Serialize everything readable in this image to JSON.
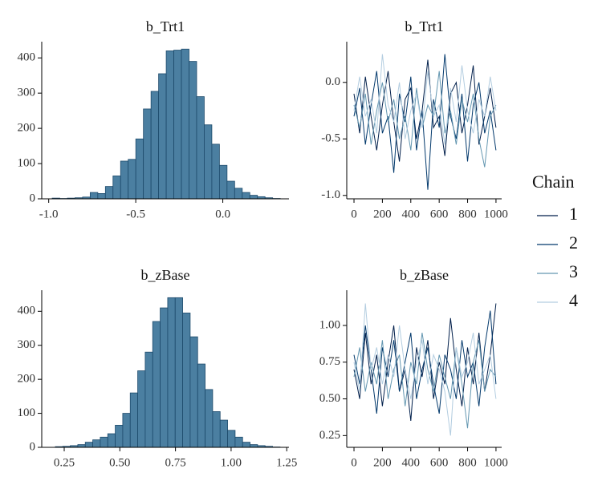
{
  "chart_data": [
    {
      "type": "histogram",
      "title": "b_Trt1",
      "color": "#4b7fa1",
      "edge_color": "#1d4a6b",
      "bins": [
        -0.98,
        -0.9363,
        -0.8927,
        -0.849,
        -0.8053,
        -0.7617,
        -0.718,
        -0.6743,
        -0.6307,
        -0.587,
        -0.5433,
        -0.4997,
        -0.456,
        -0.4123,
        -0.3687,
        -0.325,
        -0.2813,
        -0.2377,
        -0.194,
        -0.1503,
        -0.1067,
        -0.063,
        -0.0193,
        0.0243,
        0.068,
        0.1117,
        0.1553,
        0.199,
        0.2427,
        0.2863,
        0.33
      ],
      "values": [
        2,
        1,
        2,
        3,
        5,
        18,
        15,
        35,
        65,
        107,
        112,
        170,
        255,
        305,
        355,
        420,
        422,
        425,
        390,
        290,
        210,
        155,
        95,
        50,
        30,
        18,
        10,
        6,
        3,
        1
      ],
      "xlim": [
        -1.04,
        0.38
      ],
      "xticks": [
        {
          "value": -1,
          "label": "-1.0"
        },
        {
          "value": -0.5,
          "label": "-0.5"
        },
        {
          "value": 0,
          "label": "0.0"
        }
      ],
      "ylim": [
        0,
        446
      ],
      "yticks": [
        0,
        100,
        200,
        300,
        400
      ]
    },
    {
      "type": "line",
      "title": "b_Trt1",
      "x": [
        0,
        40,
        80,
        120,
        160,
        200,
        240,
        280,
        320,
        360,
        400,
        440,
        480,
        520,
        560,
        600,
        640,
        680,
        720,
        760,
        800,
        840,
        880,
        920,
        960,
        1000
      ],
      "series": [
        {
          "name": "1",
          "color": "#011f4b",
          "values": [
            -0.1,
            -0.45,
            0.05,
            -0.3,
            -0.6,
            -0.2,
            0.1,
            -0.35,
            -0.7,
            -0.15,
            -0.05,
            -0.5,
            -0.25,
            0.2,
            -0.4,
            -0.3,
            -0.65,
            -0.1,
            0.0,
            -0.45,
            -0.2,
            0.15,
            -0.55,
            -0.3,
            -0.05,
            -0.4
          ]
        },
        {
          "name": "2",
          "color": "#03396c",
          "values": [
            -0.3,
            -0.05,
            -0.55,
            -0.2,
            0.1,
            -0.45,
            -0.3,
            -0.8,
            -0.1,
            -0.35,
            0.05,
            -0.6,
            -0.25,
            -0.95,
            -0.15,
            -0.4,
            0.25,
            -0.3,
            -0.5,
            -0.1,
            -0.7,
            -0.2,
            0.0,
            -0.45,
            -0.25,
            -0.6
          ]
        },
        {
          "name": "3",
          "color": "#6497b1",
          "values": [
            -0.2,
            -0.4,
            -0.1,
            -0.55,
            -0.25,
            0.0,
            -0.35,
            -0.15,
            -0.5,
            -0.3,
            -0.6,
            -0.05,
            -0.4,
            -0.2,
            -0.3,
            0.1,
            -0.45,
            -0.25,
            -0.55,
            -0.15,
            -0.35,
            -0.1,
            -0.5,
            -0.75,
            -0.3,
            -0.2
          ]
        },
        {
          "name": "4",
          "color": "#b3cde0",
          "values": [
            -0.25,
            0.05,
            -0.3,
            -0.15,
            -0.45,
            0.25,
            -0.2,
            -0.35,
            0.0,
            -0.5,
            -0.25,
            -0.1,
            -0.4,
            0.1,
            -0.3,
            -0.2,
            -0.55,
            -0.05,
            -0.35,
            0.15,
            -0.25,
            -0.45,
            -0.15,
            -0.3,
            0.05,
            -0.25
          ]
        }
      ],
      "legend_title": "Chain",
      "legend": "right",
      "xlim": [
        -51,
        1040
      ],
      "xticks": [
        0,
        200,
        400,
        600,
        800,
        1000
      ],
      "ylim": [
        -1.03,
        0.36
      ],
      "yticks": [
        {
          "value": -1,
          "label": "-1.0"
        },
        {
          "value": -0.5,
          "label": "-0.5"
        },
        {
          "value": 0,
          "label": "0.0"
        }
      ]
    },
    {
      "type": "histogram",
      "title": "b_zBase",
      "color": "#4b7fa1",
      "edge_color": "#1d4a6b",
      "bins": [
        0.21,
        0.2437,
        0.2773,
        0.311,
        0.3447,
        0.3783,
        0.412,
        0.4457,
        0.4793,
        0.513,
        0.5467,
        0.5803,
        0.614,
        0.6477,
        0.6813,
        0.715,
        0.7487,
        0.7823,
        0.816,
        0.8497,
        0.8833,
        0.917,
        0.9507,
        0.9843,
        1.018,
        1.0517,
        1.0853,
        1.119,
        1.1527,
        1.1863,
        1.22
      ],
      "values": [
        2,
        3,
        5,
        8,
        15,
        22,
        30,
        40,
        65,
        100,
        160,
        225,
        280,
        370,
        410,
        440,
        440,
        395,
        325,
        245,
        170,
        105,
        80,
        50,
        30,
        15,
        8,
        5,
        3,
        1
      ],
      "xlim": [
        0.149,
        1.26
      ],
      "xticks": [
        0.25,
        {
          "value": 0.5,
          "label": "0.50"
        },
        0.75,
        {
          "value": 1,
          "label": "1.00"
        },
        1.25
      ],
      "ylim": [
        0,
        462
      ],
      "yticks": [
        0,
        100,
        200,
        300,
        400
      ]
    },
    {
      "type": "line",
      "title": "b_zBase",
      "x": [
        0,
        40,
        80,
        120,
        160,
        200,
        240,
        280,
        320,
        360,
        400,
        440,
        480,
        520,
        560,
        600,
        640,
        680,
        720,
        760,
        800,
        840,
        880,
        920,
        960,
        1000
      ],
      "series": [
        {
          "color": "#011f4b",
          "values": [
            0.7,
            0.5,
            0.95,
            0.6,
            0.8,
            0.45,
            0.75,
            1.0,
            0.55,
            0.7,
            0.35,
            0.85,
            0.65,
            0.9,
            0.5,
            0.75,
            0.6,
            1.05,
            0.7,
            0.45,
            0.85,
            0.6,
            0.95,
            0.55,
            0.8,
            1.15
          ]
        },
        {
          "color": "#03396c",
          "values": [
            0.8,
            0.6,
            1.0,
            0.7,
            0.4,
            0.85,
            0.65,
            0.9,
            0.55,
            0.75,
            0.95,
            0.5,
            0.7,
            0.85,
            0.6,
            0.4,
            0.8,
            0.7,
            0.5,
            0.9,
            0.65,
            0.75,
            0.45,
            0.85,
            1.1,
            0.6
          ]
        },
        {
          "color": "#6497b1",
          "values": [
            0.65,
            0.85,
            0.55,
            0.75,
            0.6,
            0.9,
            0.5,
            0.7,
            0.8,
            0.45,
            0.75,
            0.6,
            0.95,
            0.7,
            0.55,
            0.8,
            0.65,
            0.5,
            0.85,
            0.6,
            0.3,
            0.75,
            0.9,
            0.55,
            0.7,
            0.65
          ]
        },
        {
          "color": "#b3cde0",
          "values": [
            0.75,
            0.55,
            1.15,
            0.7,
            0.85,
            0.6,
            0.8,
            0.65,
            1.0,
            0.7,
            0.5,
            0.75,
            0.9,
            0.6,
            0.8,
            0.7,
            0.55,
            0.25,
            0.85,
            0.65,
            0.75,
            0.95,
            0.6,
            0.7,
            0.8,
            0.5
          ]
        }
      ],
      "xlim": [
        -51,
        1040
      ],
      "xticks": [
        0,
        200,
        400,
        600,
        800,
        1000
      ],
      "ylim": [
        0.17,
        1.24
      ],
      "yticks": [
        {
          "value": 1,
          "label": "1.00"
        },
        0.75,
        {
          "value": 0.5,
          "label": "0.50"
        },
        0.25
      ]
    }
  ]
}
